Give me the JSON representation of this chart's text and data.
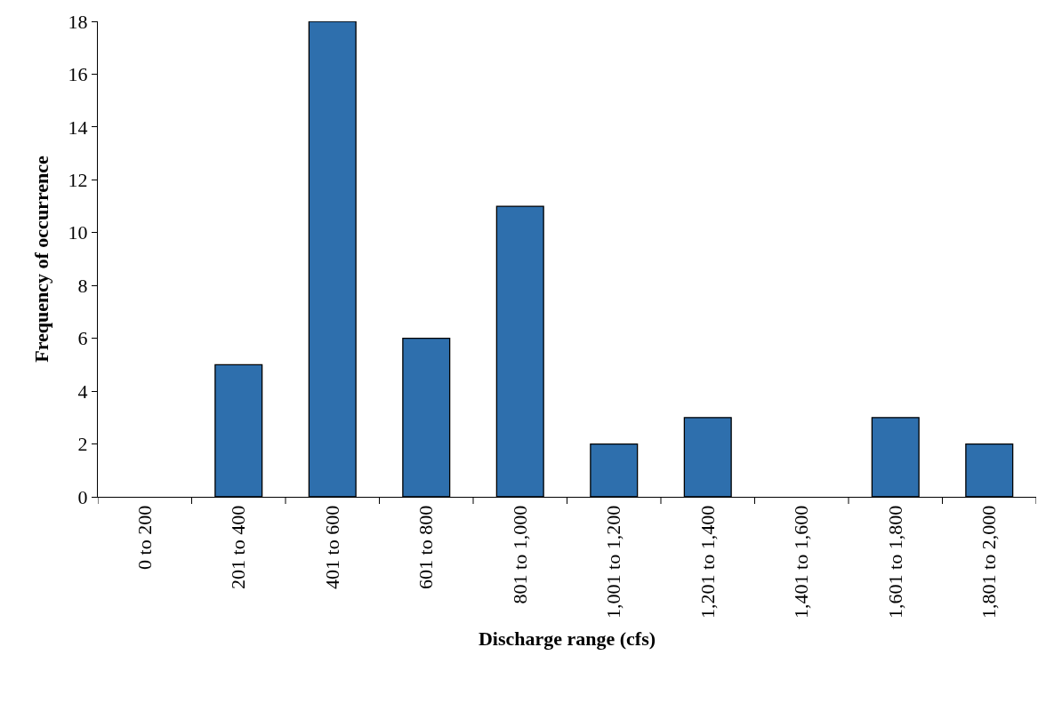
{
  "chart_data": {
    "type": "bar",
    "xlabel": "Discharge range (cfs)",
    "ylabel": "Frequency of occurrence",
    "categories": [
      "0 to 200",
      "201 to 400",
      "401 to 600",
      "601 to 800",
      "801 to 1,000",
      "1,001 to 1,200",
      "1,201 to 1,400",
      "1,401 to 1,600",
      "1,601 to 1,800",
      "1,801 to 2,000"
    ],
    "values": [
      0,
      5,
      18,
      6,
      11,
      2,
      3,
      0,
      3,
      2
    ],
    "color": "#2e6fad",
    "ylim": [
      0,
      18
    ],
    "yticks": [
      0,
      2,
      4,
      6,
      8,
      10,
      12,
      14,
      16,
      18
    ]
  }
}
